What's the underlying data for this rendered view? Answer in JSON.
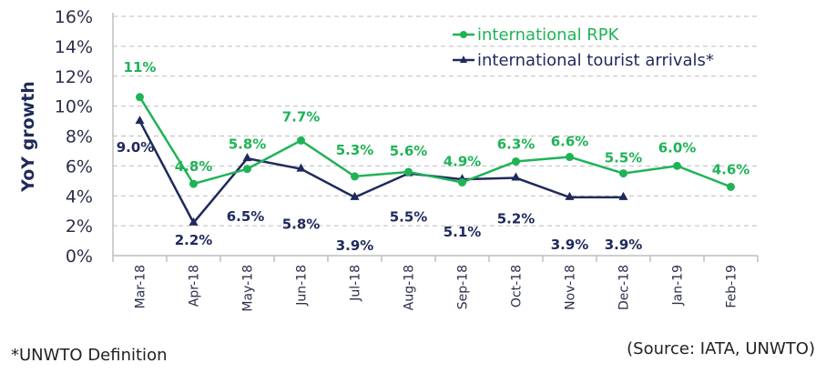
{
  "chart_data": {
    "type": "line",
    "title": "",
    "xlabel": "",
    "ylabel": "YoY growth",
    "ylim": [
      0,
      16
    ],
    "yticks": [
      "0%",
      "2%",
      "4%",
      "6%",
      "8%",
      "10%",
      "12%",
      "14%",
      "16%"
    ],
    "grid": true,
    "legend_position": "top-right",
    "categories": [
      "Mar-18",
      "Apr-18",
      "May-18",
      "Jun-18",
      "Jul-18",
      "Aug-18",
      "Sep-18",
      "Oct-18",
      "Nov-18",
      "Dec-18",
      "Jan-19",
      "Feb-19"
    ],
    "series": [
      {
        "name": "international RPK",
        "color": "#1fb356",
        "marker": "circle",
        "values": [
          10.6,
          4.8,
          5.8,
          7.7,
          5.3,
          5.6,
          4.9,
          6.3,
          6.6,
          5.5,
          6.0,
          4.6
        ],
        "labels": [
          "11%",
          "4.8%",
          "5.8%",
          "7.7%",
          "5.3%",
          "5.6%",
          "4.9%",
          "6.3%",
          "6.6%",
          "5.5%",
          "6.0%",
          "4.6%"
        ]
      },
      {
        "name": "international tourist arrivals*",
        "color": "#1f2a5c",
        "marker": "triangle",
        "values": [
          9.0,
          2.2,
          6.5,
          5.8,
          3.9,
          5.5,
          5.1,
          5.2,
          3.9,
          3.9,
          null,
          null
        ],
        "labels": [
          "9.0%",
          "2.2%",
          "6.5%",
          "5.8%",
          "3.9%",
          "5.5%",
          "5.1%",
          "5.2%",
          "3.9%",
          "3.9%",
          null,
          null
        ]
      }
    ]
  },
  "footer": {
    "note": "*UNWTO Definition",
    "source": "(Source: IATA, UNWTO)"
  }
}
